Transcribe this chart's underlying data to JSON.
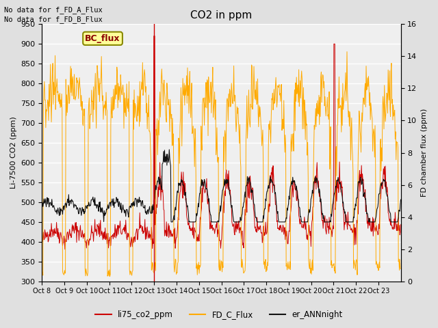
{
  "title": "CO2 in ppm",
  "ylabel_left": "Li-7500 CO2 (ppm)",
  "ylabel_right": "FD chamber flux (ppm)",
  "annotation_lines": [
    "No data for f_FD_A_Flux",
    "No data for f_FD_B_Flux"
  ],
  "bc_flux_label": "BC_flux",
  "legend_labels": [
    "li75_co2_ppm",
    "FD_C_Flux",
    "er_ANNnight"
  ],
  "legend_colors": [
    "#cc0000",
    "#ffaa00",
    "#111111"
  ],
  "ylim_left": [
    300,
    950
  ],
  "ylim_right": [
    0,
    16
  ],
  "yticks_left": [
    300,
    350,
    400,
    450,
    500,
    550,
    600,
    650,
    700,
    750,
    800,
    850,
    900,
    950
  ],
  "yticks_right": [
    0,
    2,
    4,
    6,
    8,
    10,
    12,
    14,
    16
  ],
  "xtick_labels": [
    "Oct 8",
    "Oct 9",
    "Oct 10",
    "Oct 11",
    "Oct 12",
    "Oct 13",
    "Oct 14",
    "Oct 15",
    "Oct 16",
    "Oct 17",
    "Oct 18",
    "Oct 19",
    "Oct 20",
    "Oct 21",
    "Oct 22",
    "Oct 23"
  ],
  "bg_color": "#e0e0e0",
  "plot_bg_color": "#efefef",
  "grid_color": "#ffffff",
  "vline_x": 5.0,
  "vline_color": "#cc0000"
}
